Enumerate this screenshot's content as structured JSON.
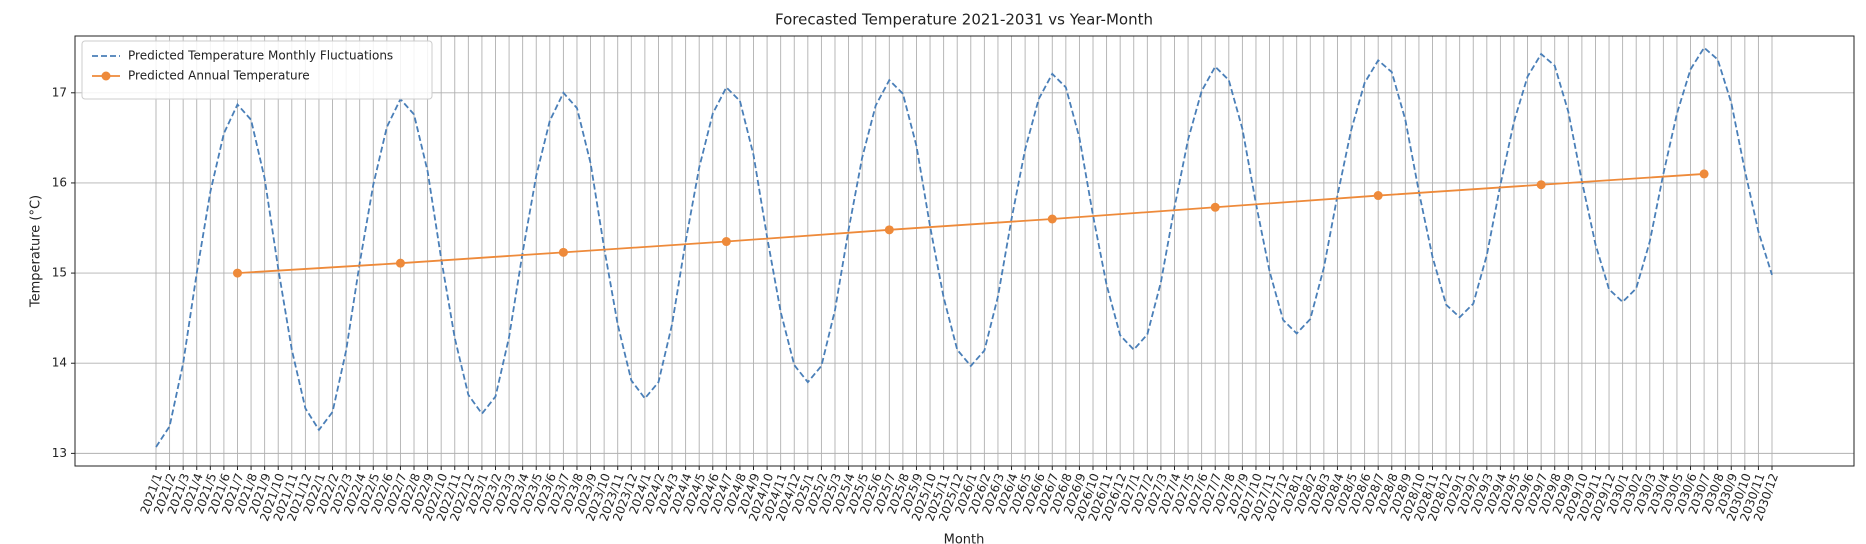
{
  "chart_data": {
    "type": "line",
    "title": "Forecasted Temperature 2021-2031 vs Year-Month",
    "x_label": "Month",
    "y_label": "Temperature (°C)",
    "categories": [
      "2021/1",
      "2021/2",
      "2021/3",
      "2021/4",
      "2021/5",
      "2021/6",
      "2021/7",
      "2021/8",
      "2021/9",
      "2021/10",
      "2021/11",
      "2021/12",
      "2022/1",
      "2022/2",
      "2022/3",
      "2022/4",
      "2022/5",
      "2022/6",
      "2022/7",
      "2022/8",
      "2022/9",
      "2022/10",
      "2022/11",
      "2022/12",
      "2023/1",
      "2023/2",
      "2023/3",
      "2023/4",
      "2023/5",
      "2023/6",
      "2023/7",
      "2023/8",
      "2023/9",
      "2023/10",
      "2023/11",
      "2023/12",
      "2024/1",
      "2024/2",
      "2024/3",
      "2024/4",
      "2024/5",
      "2024/6",
      "2024/7",
      "2024/8",
      "2024/9",
      "2024/10",
      "2024/11",
      "2024/12",
      "2025/1",
      "2025/2",
      "2025/3",
      "2025/4",
      "2025/5",
      "2025/6",
      "2025/7",
      "2025/8",
      "2025/9",
      "2025/10",
      "2025/11",
      "2025/12",
      "2026/1",
      "2026/2",
      "2026/3",
      "2026/4",
      "2026/5",
      "2026/6",
      "2026/7",
      "2026/8",
      "2026/9",
      "2026/10",
      "2026/11",
      "2026/12",
      "2027/1",
      "2027/2",
      "2027/3",
      "2027/4",
      "2027/5",
      "2027/6",
      "2027/7",
      "2027/8",
      "2027/9",
      "2027/10",
      "2027/11",
      "2027/12",
      "2028/1",
      "2028/2",
      "2028/3",
      "2028/4",
      "2028/5",
      "2028/6",
      "2028/7",
      "2028/8",
      "2028/9",
      "2028/10",
      "2028/11",
      "2028/12",
      "2029/1",
      "2029/2",
      "2029/3",
      "2029/4",
      "2029/5",
      "2029/6",
      "2029/7",
      "2029/8",
      "2029/9",
      "2029/10",
      "2029/11",
      "2029/12",
      "2030/1",
      "2030/2",
      "2030/3",
      "2030/4",
      "2030/5",
      "2030/6",
      "2030/7",
      "2030/8",
      "2030/9",
      "2030/10",
      "2030/11",
      "2030/12"
    ],
    "series": [
      {
        "name": "Predicted Temperature Monthly Fluctuations",
        "color": "#4a7fb8",
        "dashed": true,
        "values": [
          13.07,
          13.3,
          14.0,
          15.0,
          15.9,
          16.55,
          16.87,
          16.7,
          16.05,
          15.05,
          14.15,
          13.5,
          13.26,
          13.46,
          14.14,
          15.11,
          15.98,
          16.62,
          16.93,
          16.76,
          16.13,
          15.16,
          14.28,
          13.65,
          13.44,
          13.63,
          14.29,
          15.23,
          16.08,
          16.69,
          17.0,
          16.83,
          16.22,
          15.28,
          14.43,
          13.81,
          13.61,
          13.79,
          14.43,
          15.35,
          16.17,
          16.77,
          17.06,
          16.91,
          16.31,
          15.4,
          14.57,
          13.98,
          13.79,
          13.97,
          14.59,
          15.48,
          16.28,
          16.86,
          17.14,
          16.99,
          16.41,
          15.52,
          14.73,
          14.15,
          13.97,
          14.14,
          14.74,
          15.6,
          16.37,
          16.93,
          17.21,
          17.06,
          16.5,
          15.64,
          14.87,
          14.31,
          14.15,
          14.32,
          14.9,
          15.73,
          16.48,
          17.02,
          17.29,
          17.14,
          16.6,
          15.77,
          15.02,
          14.48,
          14.33,
          14.49,
          15.06,
          15.86,
          16.58,
          17.11,
          17.36,
          17.23,
          16.7,
          15.9,
          15.18,
          14.65,
          14.51,
          14.66,
          15.2,
          15.98,
          16.68,
          17.18,
          17.43,
          17.3,
          16.79,
          16.02,
          15.32,
          14.82,
          14.68,
          14.83,
          15.35,
          16.1,
          16.77,
          17.26,
          17.5,
          17.37,
          16.89,
          16.14,
          15.46,
          14.98
        ]
      },
      {
        "name": "Predicted Annual Temperature",
        "color": "#ee8a3a",
        "markers": true,
        "x": [
          "2021/7",
          "2022/7",
          "2023/7",
          "2024/7",
          "2025/7",
          "2026/7",
          "2027/7",
          "2028/7",
          "2029/7",
          "2030/7"
        ],
        "values": [
          15.0,
          15.11,
          15.23,
          15.35,
          15.48,
          15.6,
          15.73,
          15.86,
          15.98,
          16.1
        ]
      }
    ],
    "ylim": [
      12.86,
      17.63
    ],
    "yticks": [
      13,
      14,
      15,
      16,
      17
    ],
    "grid": true,
    "legend": "upper left"
  }
}
